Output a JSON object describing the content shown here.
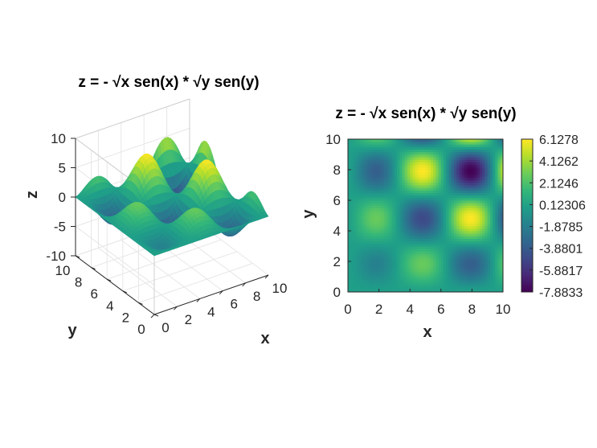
{
  "chart_data": [
    {
      "type": "surface",
      "title": "z = - √x sen(x) * √y sen(y)",
      "function": "z = -sqrt(x)*sin(x)*sqrt(y)*sin(y)",
      "xlabel": "x",
      "ylabel": "y",
      "zlabel": "z",
      "xlim": [
        0,
        10
      ],
      "ylim": [
        0,
        10
      ],
      "zlim": [
        -10,
        10
      ],
      "xticks": [
        "0",
        "2",
        "4",
        "6",
        "8",
        "10"
      ],
      "yticks": [
        "0",
        "2",
        "4",
        "6",
        "8",
        "10"
      ],
      "zticks": [
        "-10",
        "-5",
        "0",
        "5",
        "10"
      ],
      "colormap": "viridis",
      "grid": true
    },
    {
      "type": "heatmap",
      "title": "z = - √x sen(x) * √y sen(y)",
      "function": "z = -sqrt(x)*sin(x)*sqrt(y)*sin(y)",
      "xlabel": "x",
      "ylabel": "y",
      "xlim": [
        0,
        10
      ],
      "ylim": [
        0,
        10
      ],
      "xticks": [
        "0",
        "2",
        "4",
        "6",
        "8",
        "10"
      ],
      "yticks": [
        "0",
        "2",
        "4",
        "6",
        "8",
        "10"
      ],
      "colorbar": {
        "range": [
          -7.8833,
          6.1278
        ],
        "ticks": [
          "6.1278",
          "4.1262",
          "2.1246",
          "0.12306",
          "-1.8785",
          "-3.8801",
          "-5.8817",
          "-7.8833"
        ]
      },
      "colormap": "viridis"
    }
  ]
}
